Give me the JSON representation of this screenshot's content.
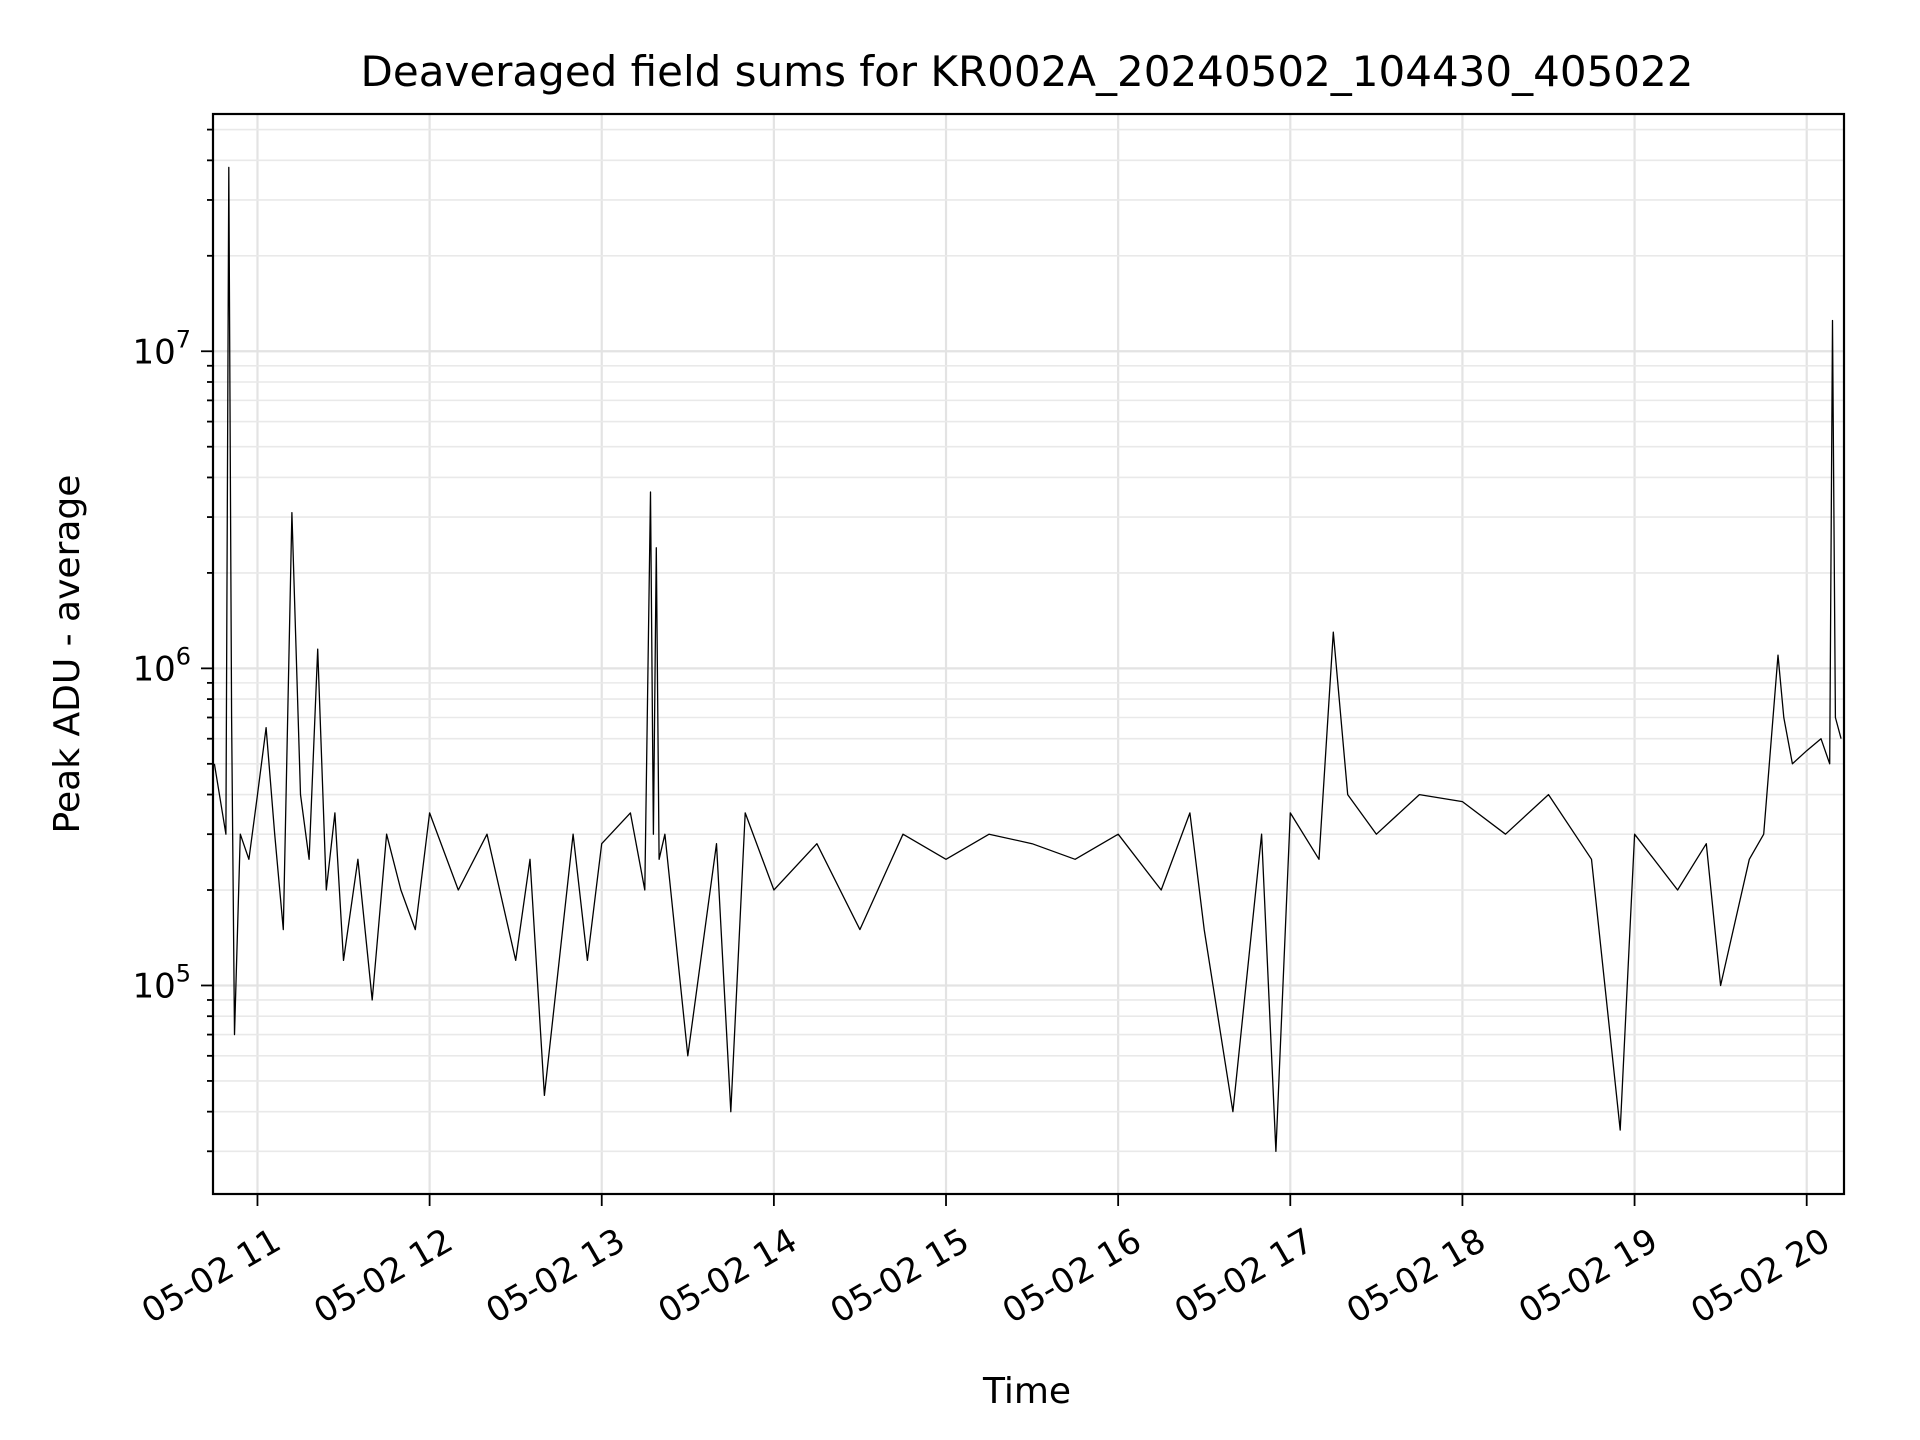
{
  "chart_data": {
    "type": "line",
    "title": "Deaveraged field sums for KR002A_20240502_104430_405022",
    "xlabel": "Time",
    "ylabel": "Peak ADU - average",
    "y_scale": "log",
    "grid": true,
    "grid_minor_y": true,
    "line_color": "#000000",
    "x_range": [
      "2024-05-02 10:44:30",
      "2024-05-02 20:13:00"
    ],
    "ylim": [
      22000,
      56000000
    ],
    "x_ticks": [
      {
        "value": "2024-05-02 11:00",
        "label": "05-02 11"
      },
      {
        "value": "2024-05-02 12:00",
        "label": "05-02 12"
      },
      {
        "value": "2024-05-02 13:00",
        "label": "05-02 13"
      },
      {
        "value": "2024-05-02 14:00",
        "label": "05-02 14"
      },
      {
        "value": "2024-05-02 15:00",
        "label": "05-02 15"
      },
      {
        "value": "2024-05-02 16:00",
        "label": "05-02 16"
      },
      {
        "value": "2024-05-02 17:00",
        "label": "05-02 17"
      },
      {
        "value": "2024-05-02 18:00",
        "label": "05-02 18"
      },
      {
        "value": "2024-05-02 19:00",
        "label": "05-02 19"
      },
      {
        "value": "2024-05-02 20:00",
        "label": "05-02 20"
      }
    ],
    "y_ticks": [
      {
        "value": 100000,
        "base": "10",
        "exp": "5"
      },
      {
        "value": 1000000,
        "base": "10",
        "exp": "6"
      },
      {
        "value": 10000000,
        "base": "10",
        "exp": "7"
      }
    ],
    "series": [
      {
        "x": [
          "2024-05-02 10:45",
          "2024-05-02 10:49",
          "2024-05-02 10:50",
          "2024-05-02 10:51",
          "2024-05-02 10:52",
          "2024-05-02 10:54",
          "2024-05-02 10:57",
          "2024-05-02 11:00",
          "2024-05-02 11:03",
          "2024-05-02 11:06",
          "2024-05-02 11:09",
          "2024-05-02 11:12",
          "2024-05-02 11:15",
          "2024-05-02 11:18",
          "2024-05-02 11:21",
          "2024-05-02 11:24",
          "2024-05-02 11:27",
          "2024-05-02 11:30",
          "2024-05-02 11:35",
          "2024-05-02 11:40",
          "2024-05-02 11:45",
          "2024-05-02 11:50",
          "2024-05-02 11:55",
          "2024-05-02 12:00",
          "2024-05-02 12:10",
          "2024-05-02 12:20",
          "2024-05-02 12:30",
          "2024-05-02 12:35",
          "2024-05-02 12:40",
          "2024-05-02 12:50",
          "2024-05-02 12:55",
          "2024-05-02 13:00",
          "2024-05-02 13:10",
          "2024-05-02 13:15",
          "2024-05-02 13:17",
          "2024-05-02 13:18",
          "2024-05-02 13:19",
          "2024-05-02 13:20",
          "2024-05-02 13:22",
          "2024-05-02 13:30",
          "2024-05-02 13:40",
          "2024-05-02 13:45",
          "2024-05-02 13:50",
          "2024-05-02 14:00",
          "2024-05-02 14:15",
          "2024-05-02 14:30",
          "2024-05-02 14:45",
          "2024-05-02 15:00",
          "2024-05-02 15:15",
          "2024-05-02 15:30",
          "2024-05-02 15:45",
          "2024-05-02 16:00",
          "2024-05-02 16:15",
          "2024-05-02 16:25",
          "2024-05-02 16:30",
          "2024-05-02 16:40",
          "2024-05-02 16:50",
          "2024-05-02 16:55",
          "2024-05-02 17:00",
          "2024-05-02 17:10",
          "2024-05-02 17:15",
          "2024-05-02 17:20",
          "2024-05-02 17:30",
          "2024-05-02 17:45",
          "2024-05-02 18:00",
          "2024-05-02 18:15",
          "2024-05-02 18:30",
          "2024-05-02 18:45",
          "2024-05-02 18:55",
          "2024-05-02 19:00",
          "2024-05-02 19:15",
          "2024-05-02 19:25",
          "2024-05-02 19:30",
          "2024-05-02 19:40",
          "2024-05-02 19:45",
          "2024-05-02 19:50",
          "2024-05-02 19:52",
          "2024-05-02 19:55",
          "2024-05-02 20:00",
          "2024-05-02 20:05",
          "2024-05-02 20:08",
          "2024-05-02 20:09",
          "2024-05-02 20:10",
          "2024-05-02 20:12"
        ],
        "y": [
          500000,
          300000,
          38000000,
          700000,
          70000,
          300000,
          250000,
          400000,
          650000,
          300000,
          150000,
          3100000,
          400000,
          250000,
          1150000,
          200000,
          350000,
          120000,
          250000,
          90000,
          300000,
          200000,
          150000,
          350000,
          200000,
          300000,
          120000,
          250000,
          45000,
          300000,
          120000,
          280000,
          350000,
          200000,
          3600000,
          300000,
          2400000,
          250000,
          300000,
          60000,
          280000,
          40000,
          350000,
          200000,
          280000,
          150000,
          300000,
          250000,
          300000,
          280000,
          250000,
          300000,
          200000,
          350000,
          150000,
          40000,
          300000,
          30000,
          350000,
          250000,
          1300000,
          400000,
          300000,
          400000,
          380000,
          300000,
          400000,
          250000,
          35000,
          300000,
          200000,
          280000,
          100000,
          250000,
          300000,
          1100000,
          700000,
          500000,
          550000,
          600000,
          500000,
          12500000,
          700000,
          600000
        ]
      }
    ]
  }
}
